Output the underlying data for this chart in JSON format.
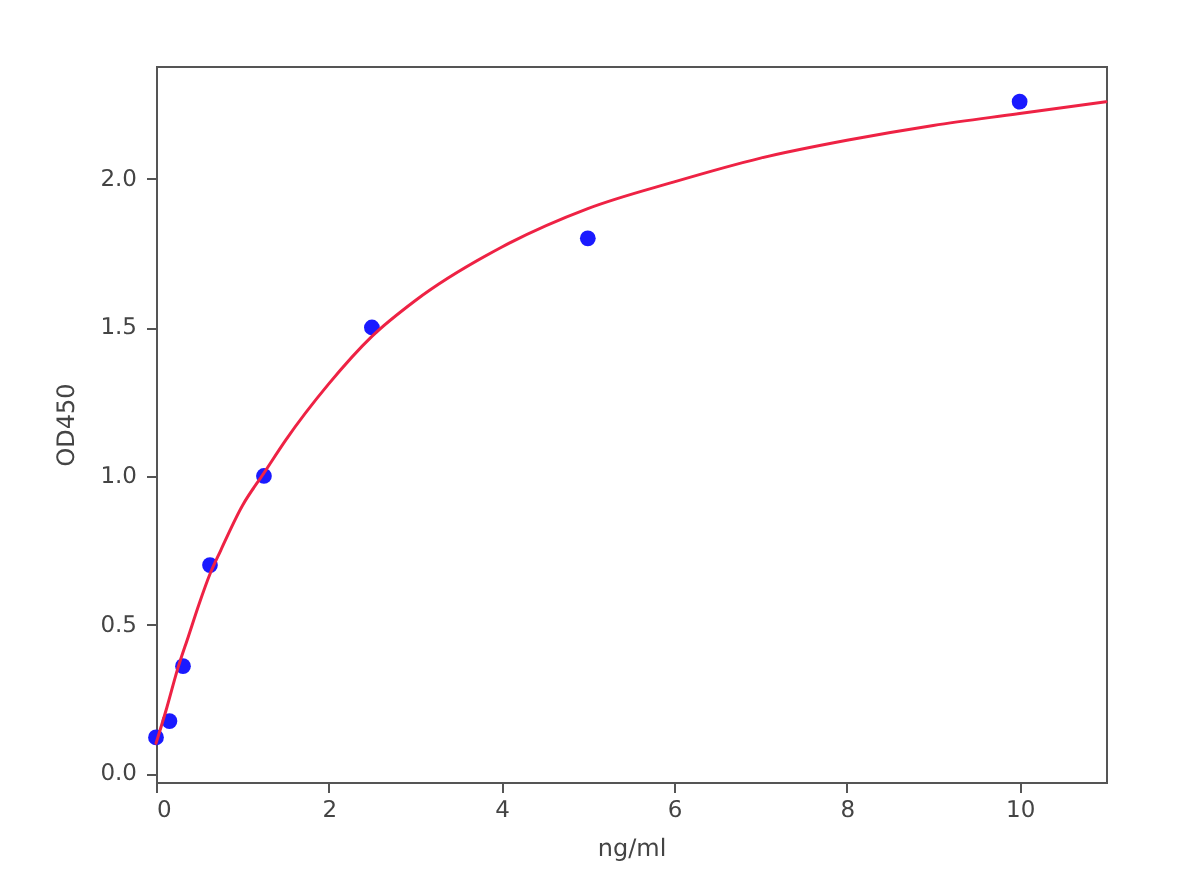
{
  "chart_data": {
    "type": "scatter",
    "xlabel": "ng/ml",
    "ylabel": "OD450",
    "xlim": [
      0,
      11
    ],
    "ylim": [
      -0.03,
      2.38
    ],
    "xticks": [
      0,
      2,
      4,
      6,
      8,
      10
    ],
    "yticks": [
      {
        "value": 0,
        "label": "0.0"
      },
      0.5,
      {
        "value": 1,
        "label": "1.0"
      },
      1.5,
      {
        "value": 2,
        "label": "2.0"
      }
    ],
    "series": [
      {
        "color": "#1a1aff",
        "marker": "circle",
        "x": [
          0,
          0.156,
          0.3125,
          0.625,
          1.25,
          2.5,
          5,
          10
        ],
        "values": [
          0.12,
          0.175,
          0.36,
          0.7,
          1.0,
          1.5,
          1.8,
          2.26
        ]
      },
      {
        "type": "line",
        "color": "#ee2244",
        "x": [
          0,
          0.125,
          0.25,
          0.375,
          0.5,
          0.625,
          0.75,
          1.0,
          1.25,
          1.5,
          2.0,
          2.5,
          3,
          4,
          5,
          6,
          7,
          8,
          9,
          10,
          11
        ],
        "values": [
          0.1,
          0.22,
          0.35,
          0.46,
          0.57,
          0.67,
          0.75,
          0.9,
          1.01,
          1.12,
          1.31,
          1.47,
          1.59,
          1.77,
          1.9,
          1.99,
          2.07,
          2.13,
          2.18,
          2.22,
          2.26
        ]
      }
    ]
  }
}
